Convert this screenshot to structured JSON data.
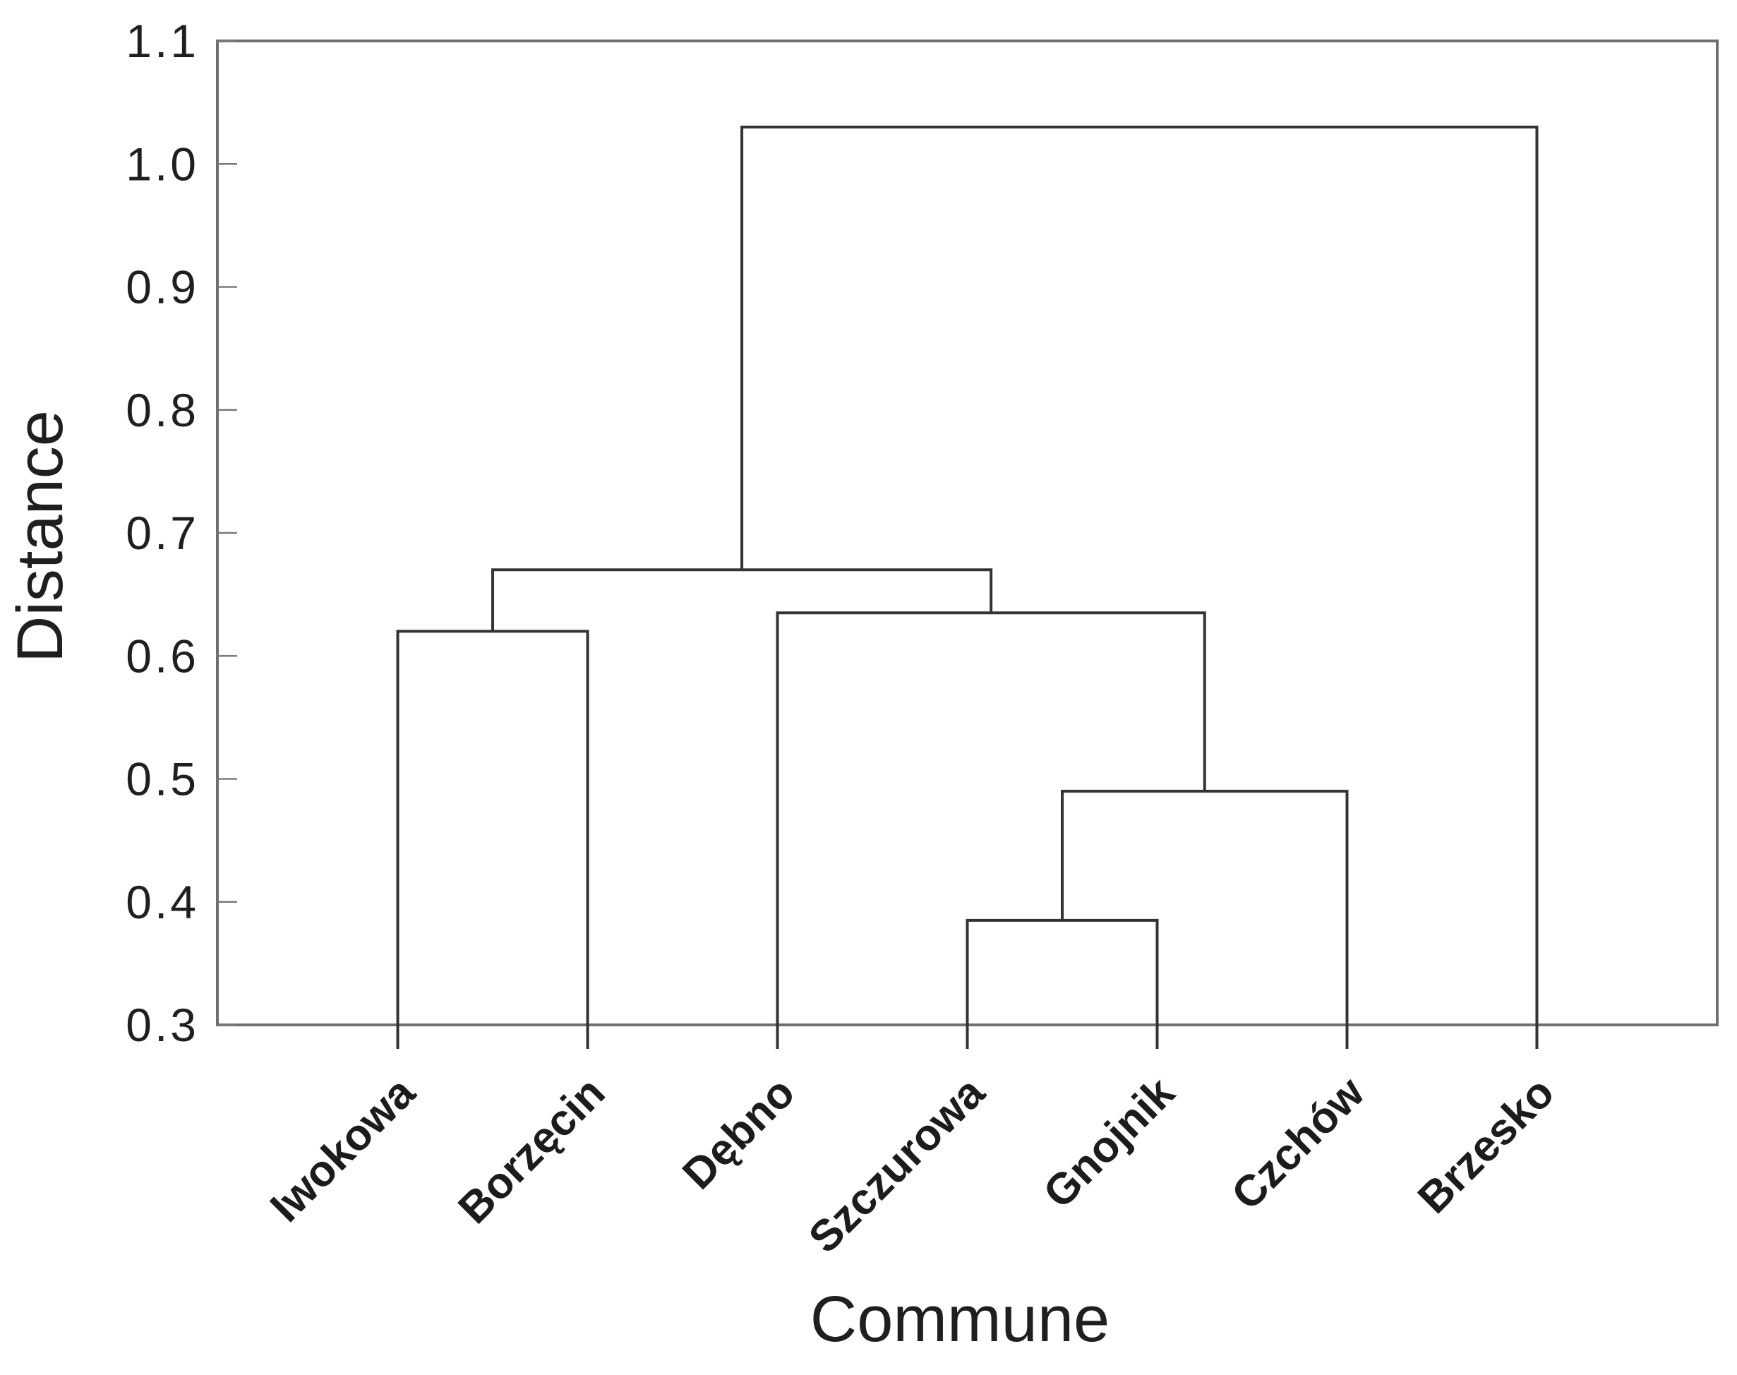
{
  "figure": {
    "background": "#ffffff"
  },
  "chart_data": {
    "type": "dendrogram",
    "title": "",
    "xlabel": "Commune",
    "ylabel": "Distance",
    "ylim": [
      0.3,
      1.1
    ],
    "yticks": [
      1.1,
      1.0,
      0.9,
      0.8,
      0.7,
      0.6,
      0.5,
      0.4,
      0.3
    ],
    "ytick_labels": [
      "1.1",
      "1.0",
      "0.9",
      "0.8",
      "0.7",
      "0.6",
      "0.5",
      "0.4",
      "0.3"
    ],
    "grid": false,
    "legend": null,
    "leaves": [
      "Iwokowa",
      "Borzęcin",
      "Dębno",
      "Szczurowa",
      "Gnojnik",
      "Czchów",
      "Brzesko"
    ],
    "merges": [
      {
        "id": "n1",
        "children": [
          "Szczurowa",
          "Gnojnik"
        ],
        "height": 0.385
      },
      {
        "id": "n2",
        "children": [
          "n1",
          "Czchów"
        ],
        "height": 0.49
      },
      {
        "id": "n3",
        "children": [
          "Iwokowa",
          "Borzęcin"
        ],
        "height": 0.62
      },
      {
        "id": "n4",
        "children": [
          "Dębno",
          "n2"
        ],
        "height": 0.635
      },
      {
        "id": "n5",
        "children": [
          "n3",
          "n4"
        ],
        "height": 0.67
      },
      {
        "id": "n6",
        "children": [
          "n5",
          "Brzesko"
        ],
        "height": 1.03
      }
    ],
    "colors": {
      "line": "#333333",
      "frame": "#6f6f6f",
      "tick": "#7a7a7a",
      "text": "#1f1f1f"
    }
  }
}
